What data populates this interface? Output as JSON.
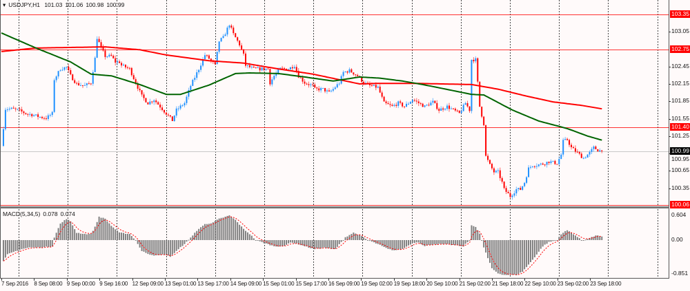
{
  "header": {
    "symbol": "USDJPY,H1",
    "open": "101.03",
    "high": "101.06",
    "low": "100.98",
    "close": "100.99"
  },
  "indicator": {
    "name": "MACD(5,34,5)",
    "macd": "0.078",
    "signal": "0.074"
  },
  "colors": {
    "background": "#fffafa",
    "bull": "#1e90ff",
    "bear": "#ff0000",
    "ma_slow": "#ff0000",
    "ma_fast": "#006400",
    "level_line": "#ff0000",
    "histogram": "#808080",
    "signal": "#ff0000"
  },
  "chart_data": [
    {
      "type": "candlestick",
      "symbol": "USDJPY",
      "timeframe": "H1",
      "ylim": [
        100.06,
        103.35
      ],
      "y_ticks": [
        "103.05",
        "102.45",
        "102.15",
        "101.85",
        "101.55",
        "101.25",
        "100.95",
        "100.65",
        "100.35"
      ],
      "x_ticks": [
        "7 Sep 2016",
        "8 Sep 08:00",
        "9 Sep 00:00",
        "9 Sep 16:00",
        "12 Sep 09:00",
        "13 Sep 01:00",
        "13 Sep 17:00",
        "14 Sep 09:00",
        "15 Sep 01:00",
        "15 Sep 17:00",
        "16 Sep 09:00",
        "19 Sep 02:00",
        "19 Sep 18:00",
        "20 Sep 10:00",
        "21 Sep 02:00",
        "21 Sep 18:00",
        "22 Sep 10:00",
        "23 Sep 02:00",
        "23 Sep 18:00"
      ],
      "grid": "vertical dotted",
      "levels": [
        "103.35",
        "102.75",
        "101.40",
        "100.06"
      ],
      "current_price": "100.99",
      "close_path": [
        [
          1,
          101.4
        ],
        [
          2,
          101.72
        ],
        [
          5,
          101.72
        ],
        [
          8,
          101.7
        ],
        [
          12,
          101.64
        ],
        [
          15,
          101.62
        ],
        [
          19,
          101.58
        ],
        [
          22,
          101.56
        ],
        [
          25,
          101.64
        ],
        [
          26,
          102.23
        ],
        [
          29,
          102.41
        ],
        [
          32,
          102.44
        ],
        [
          34,
          102.29
        ],
        [
          37,
          102.15
        ],
        [
          41,
          102.12
        ],
        [
          44,
          102.17
        ],
        [
          46,
          102.59
        ],
        [
          47,
          102.95
        ],
        [
          49,
          102.77
        ],
        [
          51,
          102.63
        ],
        [
          54,
          102.63
        ],
        [
          56,
          102.53
        ],
        [
          58,
          102.53
        ],
        [
          59,
          102.47
        ],
        [
          63,
          102.41
        ],
        [
          66,
          102.17
        ],
        [
          69,
          101.94
        ],
        [
          72,
          101.82
        ],
        [
          75,
          101.88
        ],
        [
          78,
          101.76
        ],
        [
          81,
          101.64
        ],
        [
          84,
          101.52
        ],
        [
          86,
          101.7
        ],
        [
          90,
          101.82
        ],
        [
          93,
          102.12
        ],
        [
          97,
          102.41
        ],
        [
          100,
          102.65
        ],
        [
          102,
          102.59
        ],
        [
          105,
          102.47
        ],
        [
          107,
          102.89
        ],
        [
          109,
          102.95
        ],
        [
          112,
          103.18
        ],
        [
          114,
          103.01
        ],
        [
          117,
          102.83
        ],
        [
          119,
          102.65
        ],
        [
          120,
          102.47
        ],
        [
          124,
          102.41
        ],
        [
          127,
          102.41
        ],
        [
          131,
          102.41
        ],
        [
          132,
          102.17
        ],
        [
          134,
          102.29
        ],
        [
          137,
          102.41
        ],
        [
          141,
          102.41
        ],
        [
          144,
          102.47
        ],
        [
          146,
          102.29
        ],
        [
          149,
          102.17
        ],
        [
          153,
          102.12
        ],
        [
          154,
          102.06
        ],
        [
          158,
          102.06
        ],
        [
          161,
          102.0
        ],
        [
          163,
          102.06
        ],
        [
          166,
          102.17
        ],
        [
          168,
          102.35
        ],
        [
          171,
          102.38
        ],
        [
          175,
          102.29
        ],
        [
          178,
          102.17
        ],
        [
          181,
          102.12
        ],
        [
          185,
          102.09
        ],
        [
          188,
          101.82
        ],
        [
          192,
          101.76
        ],
        [
          195,
          101.82
        ],
        [
          198,
          101.76
        ],
        [
          202,
          101.88
        ],
        [
          205,
          101.82
        ],
        [
          208,
          101.76
        ],
        [
          212,
          101.84
        ],
        [
          215,
          101.7
        ],
        [
          219,
          101.76
        ],
        [
          222,
          101.7
        ],
        [
          225,
          101.64
        ],
        [
          228,
          101.82
        ],
        [
          230,
          101.7
        ],
        [
          231,
          102.57
        ],
        [
          233,
          102.57
        ],
        [
          234,
          102.17
        ],
        [
          235,
          101.76
        ],
        [
          237,
          101.46
        ],
        [
          238,
          100.9
        ],
        [
          240,
          100.75
        ],
        [
          242,
          100.63
        ],
        [
          244,
          100.63
        ],
        [
          246,
          100.45
        ],
        [
          247,
          100.33
        ],
        [
          250,
          100.21
        ],
        [
          253,
          100.33
        ],
        [
          255,
          100.33
        ],
        [
          257,
          100.45
        ],
        [
          259,
          100.69
        ],
        [
          261,
          100.75
        ],
        [
          263,
          100.75
        ],
        [
          266,
          100.77
        ],
        [
          269,
          100.81
        ],
        [
          273,
          100.78
        ],
        [
          275,
          100.93
        ],
        [
          276,
          101.16
        ],
        [
          278,
          101.19
        ],
        [
          280,
          101.05
        ],
        [
          282,
          100.99
        ],
        [
          284,
          100.93
        ],
        [
          286,
          100.87
        ],
        [
          289,
          100.96
        ],
        [
          291,
          101.05
        ],
        [
          293,
          101.01
        ],
        [
          295,
          100.99
        ]
      ],
      "ma_slow": [
        [
          0,
          102.71
        ],
        [
          17,
          102.77
        ],
        [
          51,
          102.79
        ],
        [
          68,
          102.74
        ],
        [
          81,
          102.65
        ],
        [
          102,
          102.55
        ],
        [
          119,
          102.51
        ],
        [
          136,
          102.41
        ],
        [
          153,
          102.32
        ],
        [
          176,
          102.15
        ],
        [
          186,
          102.16
        ],
        [
          203,
          102.16
        ],
        [
          231,
          102.14
        ],
        [
          244,
          102.06
        ],
        [
          258,
          101.94
        ],
        [
          271,
          101.84
        ],
        [
          285,
          101.78
        ],
        [
          295,
          101.72
        ]
      ],
      "ma_fast": [
        [
          0,
          103.03
        ],
        [
          17,
          102.77
        ],
        [
          34,
          102.53
        ],
        [
          44,
          102.32
        ],
        [
          54,
          102.29
        ],
        [
          68,
          102.14
        ],
        [
          81,
          101.97
        ],
        [
          88,
          101.97
        ],
        [
          102,
          102.13
        ],
        [
          115,
          102.33
        ],
        [
          122,
          102.34
        ],
        [
          136,
          102.33
        ],
        [
          149,
          102.27
        ],
        [
          163,
          102.2
        ],
        [
          176,
          102.27
        ],
        [
          186,
          102.25
        ],
        [
          197,
          102.2
        ],
        [
          207,
          102.14
        ],
        [
          231,
          101.97
        ],
        [
          237,
          101.96
        ],
        [
          251,
          101.7
        ],
        [
          264,
          101.51
        ],
        [
          278,
          101.38
        ],
        [
          288,
          101.25
        ],
        [
          295,
          101.18
        ]
      ]
    },
    {
      "type": "bar",
      "name": "MACD(5,34,5)",
      "ylim": [
        -0.851,
        0.604
      ],
      "y_ticks": [
        "0.604",
        "0.00",
        "-0.851"
      ],
      "histogram": [
        [
          1,
          -0.52
        ],
        [
          3,
          -0.35
        ],
        [
          7,
          -0.27
        ],
        [
          10,
          -0.22
        ],
        [
          14,
          -0.18
        ],
        [
          20,
          -0.18
        ],
        [
          25,
          -0.15
        ],
        [
          26,
          0.07
        ],
        [
          29,
          0.4
        ],
        [
          32,
          0.52
        ],
        [
          34,
          0.45
        ],
        [
          37,
          0.18
        ],
        [
          41,
          0.15
        ],
        [
          44,
          0.15
        ],
        [
          46,
          0.32
        ],
        [
          48,
          0.57
        ],
        [
          51,
          0.52
        ],
        [
          54,
          0.35
        ],
        [
          58,
          0.18
        ],
        [
          63,
          0.15
        ],
        [
          66,
          0.0
        ],
        [
          69,
          -0.27
        ],
        [
          73,
          -0.35
        ],
        [
          76,
          -0.38
        ],
        [
          80,
          -0.35
        ],
        [
          83,
          -0.4
        ],
        [
          86,
          -0.27
        ],
        [
          92,
          0.0
        ],
        [
          95,
          0.18
        ],
        [
          100,
          0.4
        ],
        [
          103,
          0.4
        ],
        [
          107,
          0.52
        ],
        [
          112,
          0.6
        ],
        [
          115,
          0.49
        ],
        [
          119,
          0.27
        ],
        [
          122,
          0.15
        ],
        [
          125,
          0.0
        ],
        [
          129,
          -0.07
        ],
        [
          134,
          -0.15
        ],
        [
          139,
          -0.15
        ],
        [
          142,
          -0.05
        ],
        [
          146,
          -0.1
        ],
        [
          151,
          -0.18
        ],
        [
          154,
          -0.22
        ],
        [
          159,
          -0.18
        ],
        [
          162,
          -0.22
        ],
        [
          164,
          -0.22
        ],
        [
          167,
          -0.05
        ],
        [
          169,
          0.07
        ],
        [
          173,
          0.18
        ],
        [
          176,
          0.12
        ],
        [
          180,
          0.0
        ],
        [
          185,
          -0.1
        ],
        [
          190,
          -0.22
        ],
        [
          193,
          -0.25
        ],
        [
          197,
          -0.22
        ],
        [
          202,
          -0.07
        ],
        [
          205,
          -0.05
        ],
        [
          208,
          -0.15
        ],
        [
          212,
          -0.1
        ],
        [
          217,
          -0.1
        ],
        [
          222,
          -0.12
        ],
        [
          227,
          -0.15
        ],
        [
          230,
          0.0
        ],
        [
          231,
          0.37
        ],
        [
          233,
          0.32
        ],
        [
          235,
          0.15
        ],
        [
          237,
          -0.18
        ],
        [
          239,
          -0.44
        ],
        [
          241,
          -0.69
        ],
        [
          244,
          -0.81
        ],
        [
          247,
          -0.85
        ],
        [
          253,
          -0.85
        ],
        [
          256,
          -0.77
        ],
        [
          259,
          -0.6
        ],
        [
          263,
          -0.35
        ],
        [
          266,
          -0.15
        ],
        [
          269,
          -0.05
        ],
        [
          273,
          0.0
        ],
        [
          275,
          0.15
        ],
        [
          278,
          0.24
        ],
        [
          281,
          0.15
        ],
        [
          285,
          0.0
        ],
        [
          286,
          0.0
        ],
        [
          290,
          0.07
        ],
        [
          293,
          0.12
        ],
        [
          295,
          0.08
        ]
      ]
    }
  ]
}
